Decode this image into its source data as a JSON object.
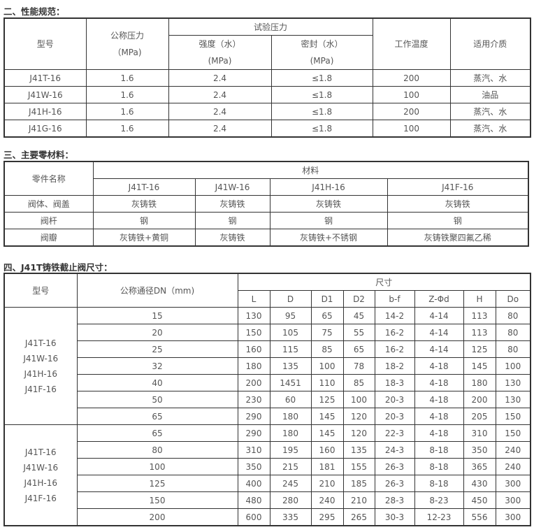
{
  "sections": {
    "performance_title": "二、性能规范：",
    "materials_title": "三、主要零材料：",
    "dimensions_title": "四、J41T铸铁截止阀尺寸："
  },
  "performance": {
    "headers": {
      "model": "型号",
      "nominal_pressure": "公称压力",
      "nominal_pressure_unit": "（MPa)",
      "test_pressure": "试验压力",
      "strength": "强度（水）",
      "strength_unit": "(MPa)",
      "seal": "密封（水）",
      "seal_unit": "(MPa)",
      "temperature": "工作温度",
      "medium": "适用介质"
    },
    "rows": [
      [
        "J41T-16",
        "1.6",
        "2.4",
        "≤1.8",
        "200",
        "蒸汽、水"
      ],
      [
        "J41W-16",
        "1.6",
        "2.4",
        "≤1.8",
        "100",
        "油品"
      ],
      [
        "J41H-16",
        "1.6",
        "2.4",
        "≤1.8",
        "200",
        "蒸汽、水"
      ],
      [
        "J41G-16",
        "1.6",
        "2.4",
        "≤1.8",
        "100",
        "蒸汽、水"
      ]
    ]
  },
  "materials": {
    "headers": {
      "part_name": "零件名称",
      "material": "材料",
      "models": [
        "J41T-16",
        "J41W-16",
        "J41H-16",
        "J41F-16"
      ]
    },
    "rows": [
      [
        "阀体、阀盖",
        "灰铸铁",
        "灰铸铁",
        "灰铸铁",
        "灰铸铁"
      ],
      [
        "阀杆",
        "钢",
        "钢",
        "钢",
        "钢"
      ],
      [
        "阀瓣",
        "灰铸铁+黄铜",
        "灰铸铁",
        "灰铸铁+不锈钢",
        "灰铸铁聚四氟乙稀"
      ]
    ]
  },
  "dimensions": {
    "headers": {
      "model": "型号",
      "dn": "公称通径DN（mm)",
      "size": "尺寸",
      "cols": [
        "L",
        "D",
        "D1",
        "D2",
        "b-f",
        "Z-Φd",
        "H",
        "Do"
      ]
    },
    "groups": [
      {
        "models": [
          "J41T-16",
          "J41W-16",
          "J41H-16",
          "J41F-16"
        ],
        "rows": [
          [
            "15",
            "130",
            "95",
            "65",
            "45",
            "14-2",
            "4-14",
            "113",
            "80"
          ],
          [
            "20",
            "150",
            "105",
            "75",
            "55",
            "16-2",
            "4-14",
            "113",
            "80"
          ],
          [
            "25",
            "160",
            "115",
            "85",
            "65",
            "16-2",
            "4-14",
            "125",
            "80"
          ],
          [
            "32",
            "180",
            "135",
            "100",
            "78",
            "18-2",
            "4-18",
            "145",
            "100"
          ],
          [
            "40",
            "200",
            "1451",
            "110",
            "85",
            "18-3",
            "4-18",
            "180",
            "130"
          ],
          [
            "50",
            "230",
            "60",
            "125",
            "100",
            "20-3",
            "4-18",
            "200",
            "130"
          ],
          [
            "65",
            "290",
            "180",
            "145",
            "120",
            "20-3",
            "4-18",
            "205",
            "150"
          ]
        ]
      },
      {
        "models": [
          "J41T-16",
          "J41W-16",
          "J41H-16",
          "J41F-16"
        ],
        "rows": [
          [
            "65",
            "290",
            "180",
            "145",
            "120",
            "22-3",
            "4-18",
            "310",
            "150"
          ],
          [
            "80",
            "310",
            "195",
            "160",
            "135",
            "24-3",
            "8-18",
            "350",
            "240"
          ],
          [
            "100",
            "350",
            "215",
            "181",
            "155",
            "26-3",
            "8-18",
            "365",
            "240"
          ],
          [
            "125",
            "400",
            "245",
            "210",
            "185",
            "26-3",
            "8-18",
            "430",
            "300"
          ],
          [
            "150",
            "480",
            "280",
            "240",
            "210",
            "28-3",
            "8-23",
            "450",
            "300"
          ],
          [
            "200",
            "600",
            "335",
            "295",
            "265",
            "30-3",
            "12-23",
            "556",
            "300"
          ]
        ]
      }
    ]
  }
}
